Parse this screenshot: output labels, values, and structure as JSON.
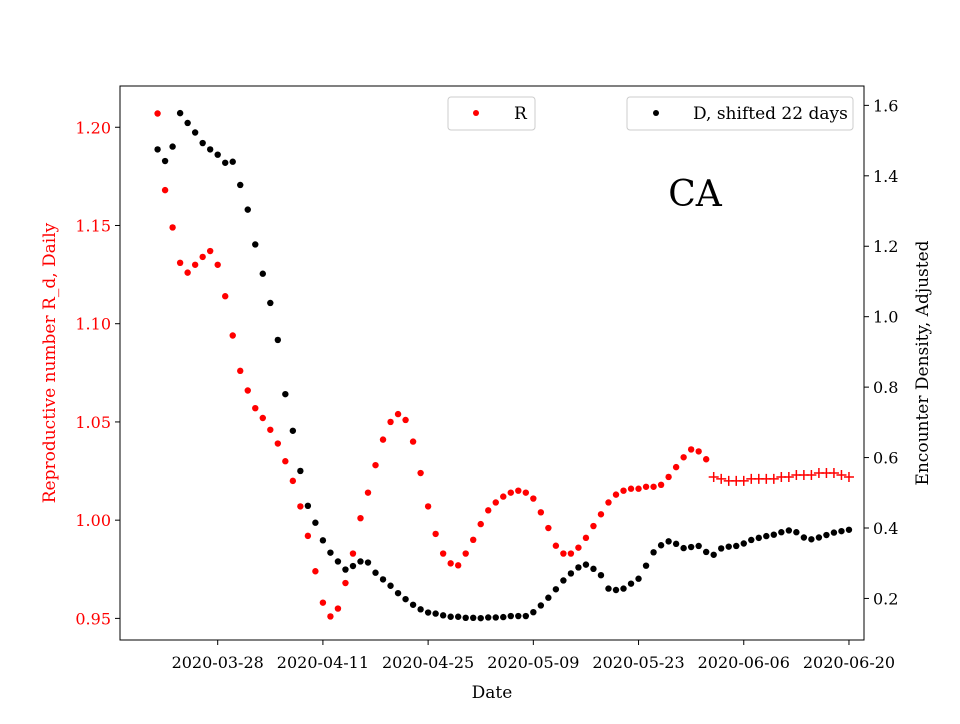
{
  "chart_data": {
    "type": "scatter",
    "state_label": "CA",
    "xlabel": "Date",
    "ylabel_left": "Reproductive number R_d, Daily",
    "ylabel_right": "Encounter Density, Adjusted",
    "xlim": [
      "2020-03-15",
      "2020-06-22"
    ],
    "ylim_left": [
      0.939,
      1.221
    ],
    "ylim_right": [
      0.082,
      1.655
    ],
    "x_ticks": [
      "2020-03-28",
      "2020-04-11",
      "2020-04-25",
      "2020-05-09",
      "2020-05-23",
      "2020-06-06",
      "2020-06-20"
    ],
    "y_ticks_left": [
      "0.95",
      "1.00",
      "1.05",
      "1.10",
      "1.15",
      "1.20"
    ],
    "y_ticks_right": [
      "0.2",
      "0.4",
      "0.6",
      "0.8",
      "1.0",
      "1.2",
      "1.4",
      "1.6"
    ],
    "grid": false,
    "colors": {
      "R": "#ff0000",
      "D": "#000000",
      "axis": "#000000",
      "left_axis_text": "#ff0000"
    },
    "series": [
      {
        "name": "R",
        "axis": "left",
        "marker": "dot",
        "x": [
          "2020-03-20",
          "2020-03-21",
          "2020-03-22",
          "2020-03-23",
          "2020-03-24",
          "2020-03-25",
          "2020-03-26",
          "2020-03-27",
          "2020-03-28",
          "2020-03-29",
          "2020-03-30",
          "2020-03-31",
          "2020-04-01",
          "2020-04-02",
          "2020-04-03",
          "2020-04-04",
          "2020-04-05",
          "2020-04-06",
          "2020-04-07",
          "2020-04-08",
          "2020-04-09",
          "2020-04-10",
          "2020-04-11",
          "2020-04-12",
          "2020-04-13",
          "2020-04-14",
          "2020-04-15",
          "2020-04-16",
          "2020-04-17",
          "2020-04-18",
          "2020-04-19",
          "2020-04-20",
          "2020-04-21",
          "2020-04-22",
          "2020-04-23",
          "2020-04-24",
          "2020-04-25",
          "2020-04-26",
          "2020-04-27",
          "2020-04-28",
          "2020-04-29",
          "2020-04-30",
          "2020-05-01",
          "2020-05-02",
          "2020-05-03",
          "2020-05-04",
          "2020-05-05",
          "2020-05-06",
          "2020-05-07",
          "2020-05-08",
          "2020-05-09",
          "2020-05-10",
          "2020-05-11",
          "2020-05-12",
          "2020-05-13",
          "2020-05-14",
          "2020-05-15",
          "2020-05-16",
          "2020-05-17",
          "2020-05-18",
          "2020-05-19",
          "2020-05-20",
          "2020-05-21",
          "2020-05-22",
          "2020-05-23",
          "2020-05-24",
          "2020-05-25",
          "2020-05-26",
          "2020-05-27",
          "2020-05-28",
          "2020-05-29",
          "2020-05-30",
          "2020-05-31",
          "2020-06-01"
        ],
        "values": [
          1.207,
          1.168,
          1.149,
          1.131,
          1.126,
          1.13,
          1.134,
          1.137,
          1.13,
          1.114,
          1.094,
          1.076,
          1.066,
          1.057,
          1.052,
          1.046,
          1.039,
          1.03,
          1.02,
          1.007,
          0.992,
          0.974,
          0.958,
          0.951,
          0.955,
          0.968,
          0.983,
          1.001,
          1.014,
          1.028,
          1.041,
          1.05,
          1.054,
          1.051,
          1.04,
          1.024,
          1.007,
          0.993,
          0.983,
          0.978,
          0.977,
          0.983,
          0.99,
          0.998,
          1.005,
          1.009,
          1.012,
          1.014,
          1.015,
          1.014,
          1.011,
          1.004,
          0.996,
          0.987,
          0.983,
          0.983,
          0.986,
          0.991,
          0.997,
          1.003,
          1.009,
          1.013,
          1.015,
          1.016,
          1.016,
          1.017,
          1.017,
          1.018,
          1.022,
          1.027,
          1.032,
          1.036,
          1.035,
          1.031
        ]
      },
      {
        "name": "R",
        "axis": "left",
        "marker": "plus",
        "x": [
          "2020-06-02",
          "2020-06-03",
          "2020-06-04",
          "2020-06-05",
          "2020-06-06",
          "2020-06-07",
          "2020-06-08",
          "2020-06-09",
          "2020-06-10",
          "2020-06-11",
          "2020-06-12",
          "2020-06-13",
          "2020-06-14",
          "2020-06-15",
          "2020-06-16",
          "2020-06-17",
          "2020-06-18",
          "2020-06-19",
          "2020-06-20"
        ],
        "values": [
          1.022,
          1.021,
          1.02,
          1.02,
          1.02,
          1.021,
          1.021,
          1.021,
          1.021,
          1.022,
          1.022,
          1.023,
          1.023,
          1.023,
          1.024,
          1.024,
          1.024,
          1.023,
          1.022
        ]
      },
      {
        "name": "D, shifted 22 days",
        "axis": "right",
        "marker": "dot",
        "x": [
          "2020-03-20",
          "2020-03-21",
          "2020-03-22",
          "2020-03-23",
          "2020-03-24",
          "2020-03-25",
          "2020-03-26",
          "2020-03-27",
          "2020-03-28",
          "2020-03-29",
          "2020-03-30",
          "2020-03-31",
          "2020-04-01",
          "2020-04-02",
          "2020-04-03",
          "2020-04-04",
          "2020-04-05",
          "2020-04-06",
          "2020-04-07",
          "2020-04-08",
          "2020-04-09",
          "2020-04-10",
          "2020-04-11",
          "2020-04-12",
          "2020-04-13",
          "2020-04-14",
          "2020-04-15",
          "2020-04-16",
          "2020-04-17",
          "2020-04-18",
          "2020-04-19",
          "2020-04-20",
          "2020-04-21",
          "2020-04-22",
          "2020-04-23",
          "2020-04-24",
          "2020-04-25",
          "2020-04-26",
          "2020-04-27",
          "2020-04-28",
          "2020-04-29",
          "2020-04-30",
          "2020-05-01",
          "2020-05-02",
          "2020-05-03",
          "2020-05-04",
          "2020-05-05",
          "2020-05-06",
          "2020-05-07",
          "2020-05-08",
          "2020-05-09",
          "2020-05-10",
          "2020-05-11",
          "2020-05-12",
          "2020-05-13",
          "2020-05-14",
          "2020-05-15",
          "2020-05-16",
          "2020-05-17",
          "2020-05-18",
          "2020-05-19",
          "2020-05-20",
          "2020-05-21",
          "2020-05-22",
          "2020-05-23",
          "2020-05-24",
          "2020-05-25",
          "2020-05-26",
          "2020-05-27",
          "2020-05-28",
          "2020-05-29",
          "2020-05-30",
          "2020-05-31",
          "2020-06-01",
          "2020-06-02",
          "2020-06-03",
          "2020-06-04",
          "2020-06-05",
          "2020-06-06",
          "2020-06-07",
          "2020-06-08",
          "2020-06-09",
          "2020-06-10",
          "2020-06-11",
          "2020-06-12",
          "2020-06-13",
          "2020-06-14",
          "2020-06-15",
          "2020-06-16",
          "2020-06-17",
          "2020-06-18",
          "2020-06-19",
          "2020-06-20"
        ],
        "values": [
          1.475,
          1.442,
          1.483,
          1.578,
          1.55,
          1.523,
          1.493,
          1.475,
          1.46,
          1.437,
          1.44,
          1.374,
          1.304,
          1.205,
          1.122,
          1.039,
          0.934,
          0.78,
          0.676,
          0.562,
          0.463,
          0.415,
          0.365,
          0.33,
          0.305,
          0.282,
          0.292,
          0.305,
          0.302,
          0.273,
          0.254,
          0.236,
          0.215,
          0.198,
          0.182,
          0.169,
          0.16,
          0.157,
          0.152,
          0.148,
          0.148,
          0.145,
          0.145,
          0.144,
          0.146,
          0.146,
          0.147,
          0.15,
          0.15,
          0.15,
          0.161,
          0.18,
          0.202,
          0.226,
          0.251,
          0.271,
          0.288,
          0.296,
          0.284,
          0.266,
          0.228,
          0.224,
          0.228,
          0.242,
          0.256,
          0.293,
          0.331,
          0.351,
          0.362,
          0.355,
          0.343,
          0.346,
          0.349,
          0.332,
          0.324,
          0.342,
          0.347,
          0.349,
          0.356,
          0.366,
          0.372,
          0.377,
          0.381,
          0.388,
          0.393,
          0.388,
          0.373,
          0.368,
          0.373,
          0.38,
          0.387,
          0.391,
          0.395
        ]
      }
    ],
    "legends": [
      {
        "label": "R",
        "color": "#ff0000",
        "placement": "top-center"
      },
      {
        "label": "D, shifted 22 days",
        "color": "#000000",
        "placement": "top-right"
      }
    ]
  }
}
